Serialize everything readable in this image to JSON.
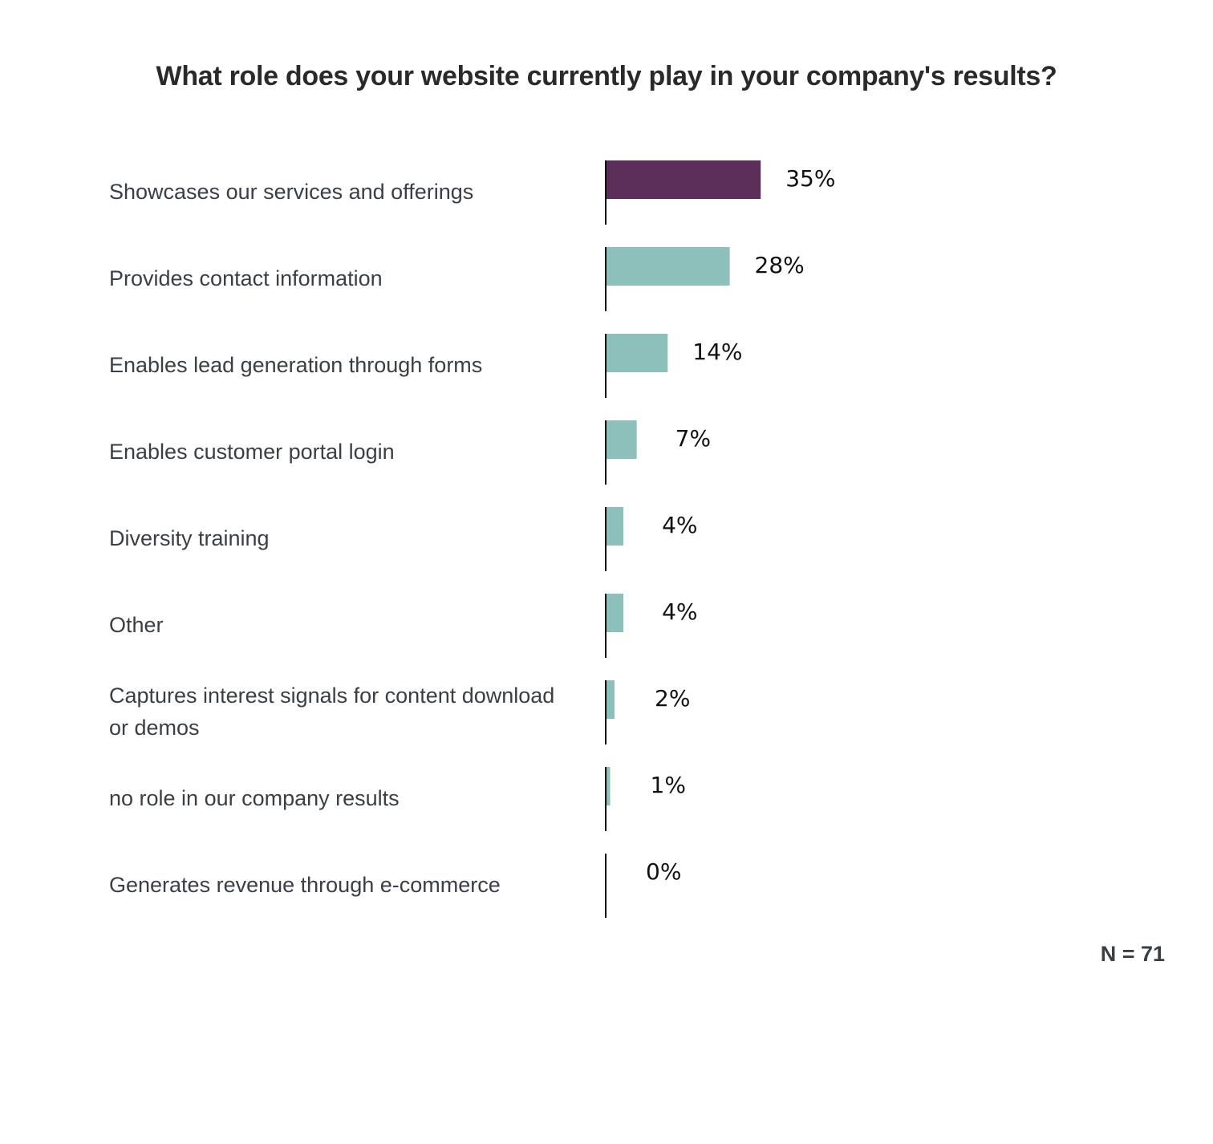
{
  "chart_data": {
    "type": "bar",
    "orientation": "horizontal",
    "title": "What role does your website currently play in your company's results?",
    "categories": [
      [
        "Showcases our services and offerings"
      ],
      [
        "Provides contact information"
      ],
      [
        "Enables lead generation through forms"
      ],
      [
        "Enables customer portal login"
      ],
      [
        "Diversity training"
      ],
      [
        "Other"
      ],
      [
        "Captures interest signals for content download",
        "or demos"
      ],
      [
        "no role in our company results"
      ],
      [
        "Generates revenue through e-commerce"
      ]
    ],
    "values": [
      35,
      28,
      14,
      7,
      4,
      4,
      2,
      1,
      0
    ],
    "value_labels": [
      "35%",
      "28%",
      "14%",
      "7%",
      "4%",
      "4%",
      "2%",
      "1%",
      "0%"
    ],
    "unit": "%",
    "xlim": [
      0,
      100
    ],
    "grid": false,
    "colors": {
      "highlight": "#5c2f5a",
      "default": "#8dbfbb",
      "axis": "#000000"
    },
    "highlight_index": 0
  },
  "footnote": "N = 71"
}
